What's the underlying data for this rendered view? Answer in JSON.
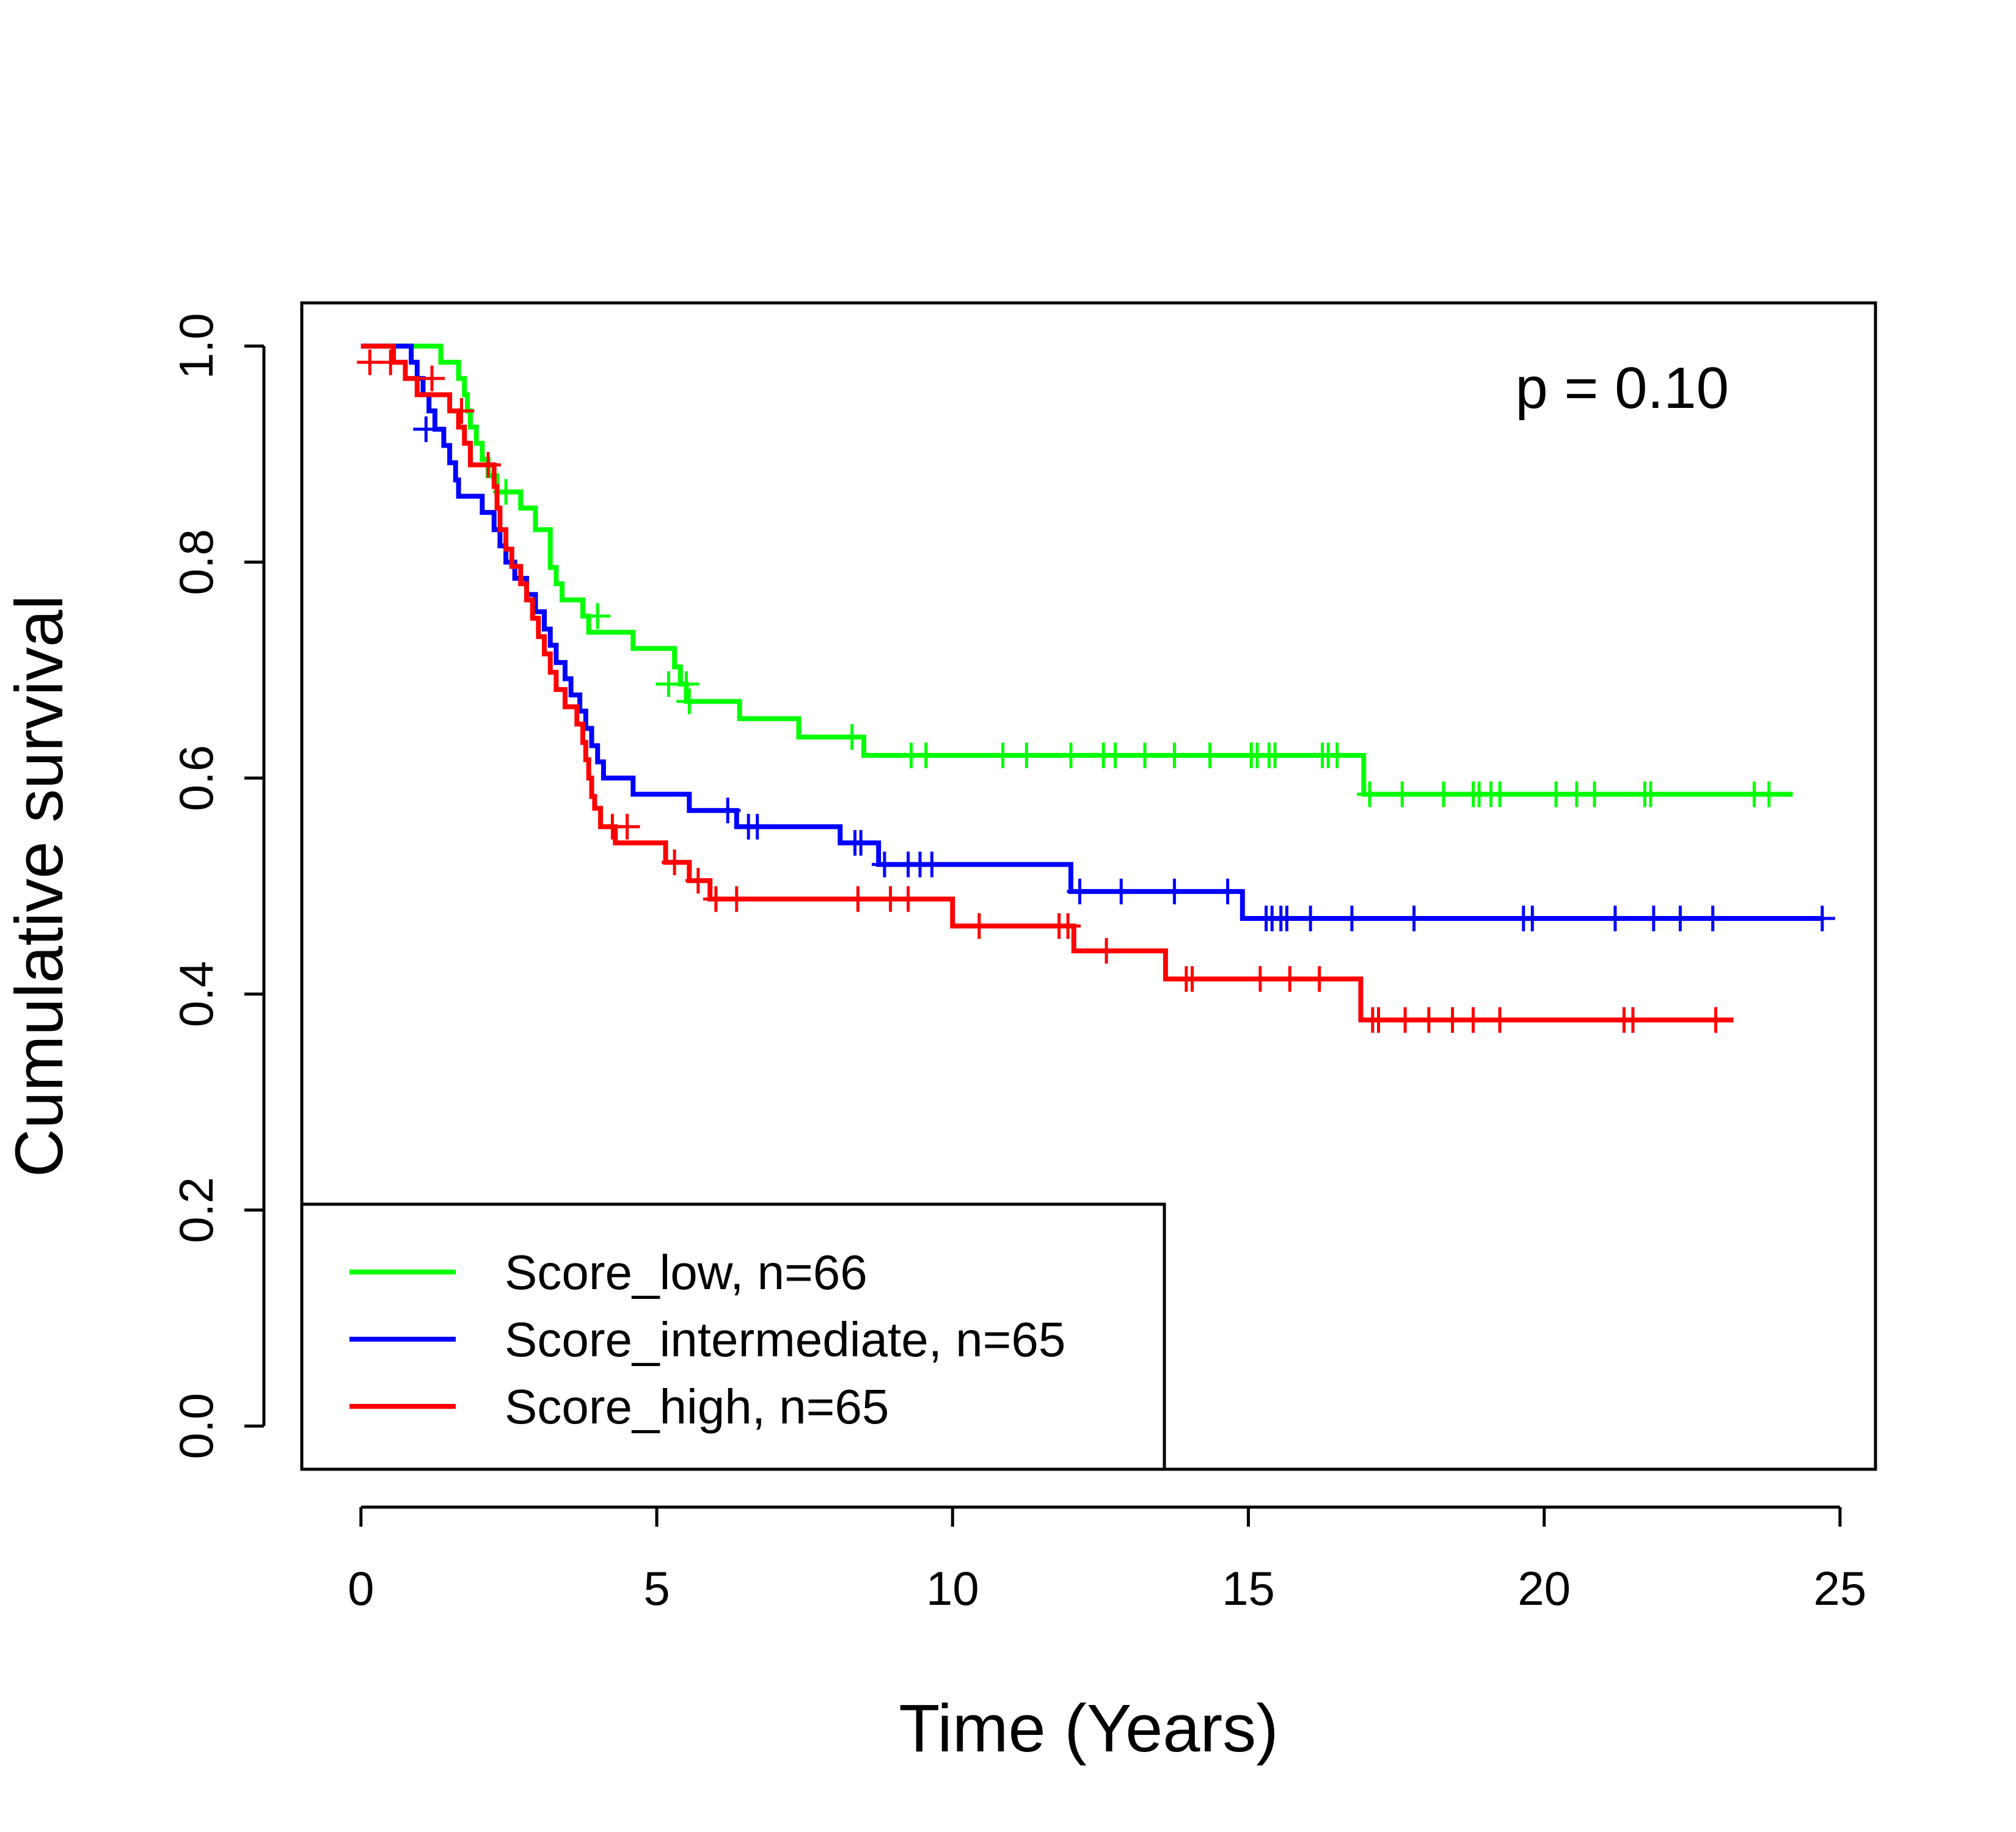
{
  "chart_data": {
    "type": "line",
    "subtype": "kaplan-meier",
    "title": "",
    "xlabel": "Time (Years)",
    "ylabel": "Cumulative survival",
    "xlim": [
      -1,
      25.6
    ],
    "ylim": [
      -0.04,
      1.04
    ],
    "xticks": [
      0,
      5,
      10,
      15,
      20,
      25
    ],
    "xtick_labels": [
      "0",
      "5",
      "10",
      "15",
      "20",
      "25"
    ],
    "yticks": [
      0,
      0.2,
      0.4,
      0.6,
      0.8,
      1.0
    ],
    "ytick_labels": [
      "0.0",
      "0.2",
      "0.4",
      "0.6",
      "0.8",
      "1.0"
    ],
    "grid": false,
    "legend_position": "bottom-left",
    "annotation": "p = 0.10",
    "series": [
      {
        "name": "Score_low, n=66",
        "color": "#00ff00",
        "steps": [
          [
            0,
            1.0
          ],
          [
            1.35,
            0.985
          ],
          [
            1.65,
            0.97
          ],
          [
            1.75,
            0.955
          ],
          [
            1.8,
            0.94
          ],
          [
            1.85,
            0.925
          ],
          [
            1.95,
            0.91
          ],
          [
            2.05,
            0.895
          ],
          [
            2.15,
            0.88
          ],
          [
            2.3,
            0.865
          ],
          [
            2.7,
            0.85
          ],
          [
            2.95,
            0.83
          ],
          [
            3.2,
            0.795
          ],
          [
            3.3,
            0.78
          ],
          [
            3.4,
            0.765
          ],
          [
            3.75,
            0.75
          ],
          [
            3.85,
            0.735
          ],
          [
            4.6,
            0.72
          ],
          [
            5.3,
            0.703
          ],
          [
            5.4,
            0.687
          ],
          [
            5.5,
            0.671
          ],
          [
            6.4,
            0.655
          ],
          [
            7.4,
            0.638
          ],
          [
            8.5,
            0.621
          ],
          [
            16.95,
            0.585
          ],
          [
            24.2,
            0.585
          ]
        ],
        "censored": [
          [
            2.45,
            0.865
          ],
          [
            4.0,
            0.75
          ],
          [
            5.2,
            0.687
          ],
          [
            5.5,
            0.687
          ],
          [
            5.55,
            0.671
          ],
          [
            8.3,
            0.638
          ],
          [
            9.3,
            0.621
          ],
          [
            9.55,
            0.621
          ],
          [
            10.85,
            0.621
          ],
          [
            11.25,
            0.621
          ],
          [
            12.0,
            0.621
          ],
          [
            12.55,
            0.621
          ],
          [
            12.75,
            0.621
          ],
          [
            13.25,
            0.621
          ],
          [
            13.75,
            0.621
          ],
          [
            14.35,
            0.621
          ],
          [
            15.05,
            0.621
          ],
          [
            15.15,
            0.621
          ],
          [
            15.35,
            0.621
          ],
          [
            15.45,
            0.621
          ],
          [
            16.25,
            0.621
          ],
          [
            16.35,
            0.621
          ],
          [
            16.5,
            0.621
          ],
          [
            17.05,
            0.585
          ],
          [
            17.6,
            0.585
          ],
          [
            18.3,
            0.585
          ],
          [
            18.8,
            0.585
          ],
          [
            18.9,
            0.585
          ],
          [
            19.1,
            0.585
          ],
          [
            19.25,
            0.585
          ],
          [
            20.2,
            0.585
          ],
          [
            20.55,
            0.585
          ],
          [
            20.85,
            0.585
          ],
          [
            21.7,
            0.585
          ],
          [
            21.8,
            0.585
          ],
          [
            23.55,
            0.585
          ],
          [
            23.8,
            0.585
          ]
        ]
      },
      {
        "name": "Score_intermediate, n=65",
        "color": "#0000ff",
        "steps": [
          [
            0,
            1.0
          ],
          [
            0.85,
            0.985
          ],
          [
            0.95,
            0.97
          ],
          [
            1.05,
            0.955
          ],
          [
            1.15,
            0.94
          ],
          [
            1.25,
            0.923
          ],
          [
            1.4,
            0.908
          ],
          [
            1.5,
            0.892
          ],
          [
            1.6,
            0.876
          ],
          [
            1.65,
            0.861
          ],
          [
            2.05,
            0.846
          ],
          [
            2.25,
            0.83
          ],
          [
            2.35,
            0.815
          ],
          [
            2.45,
            0.8
          ],
          [
            2.6,
            0.785
          ],
          [
            2.8,
            0.77
          ],
          [
            2.95,
            0.754
          ],
          [
            3.1,
            0.738
          ],
          [
            3.2,
            0.723
          ],
          [
            3.3,
            0.707
          ],
          [
            3.45,
            0.692
          ],
          [
            3.55,
            0.677
          ],
          [
            3.7,
            0.662
          ],
          [
            3.8,
            0.646
          ],
          [
            3.9,
            0.63
          ],
          [
            4.0,
            0.615
          ],
          [
            4.1,
            0.6
          ],
          [
            4.6,
            0.585
          ],
          [
            5.55,
            0.57
          ],
          [
            6.35,
            0.555
          ],
          [
            8.1,
            0.54
          ],
          [
            8.75,
            0.52
          ],
          [
            12.0,
            0.495
          ],
          [
            14.9,
            0.47
          ],
          [
            24.7,
            0.47
          ]
        ],
        "censored": [
          [
            1.1,
            0.923
          ],
          [
            6.2,
            0.57
          ],
          [
            6.55,
            0.555
          ],
          [
            6.7,
            0.555
          ],
          [
            8.35,
            0.54
          ],
          [
            8.45,
            0.54
          ],
          [
            8.85,
            0.52
          ],
          [
            9.25,
            0.52
          ],
          [
            9.45,
            0.52
          ],
          [
            9.65,
            0.52
          ],
          [
            12.15,
            0.495
          ],
          [
            12.85,
            0.495
          ],
          [
            13.75,
            0.495
          ],
          [
            14.65,
            0.495
          ],
          [
            15.3,
            0.47
          ],
          [
            15.4,
            0.47
          ],
          [
            15.55,
            0.47
          ],
          [
            15.65,
            0.47
          ],
          [
            16.05,
            0.47
          ],
          [
            16.75,
            0.47
          ],
          [
            17.8,
            0.47
          ],
          [
            19.65,
            0.47
          ],
          [
            19.8,
            0.47
          ],
          [
            21.2,
            0.47
          ],
          [
            21.85,
            0.47
          ],
          [
            22.3,
            0.47
          ],
          [
            22.85,
            0.47
          ],
          [
            24.7,
            0.47
          ]
        ]
      },
      {
        "name": "Score_high, n=65",
        "color": "#ff0000",
        "steps": [
          [
            0,
            1.0
          ],
          [
            0.55,
            0.985
          ],
          [
            0.75,
            0.97
          ],
          [
            0.95,
            0.955
          ],
          [
            1.5,
            0.94
          ],
          [
            1.65,
            0.925
          ],
          [
            1.75,
            0.91
          ],
          [
            1.85,
            0.89
          ],
          [
            2.25,
            0.87
          ],
          [
            2.3,
            0.85
          ],
          [
            2.35,
            0.83
          ],
          [
            2.45,
            0.812
          ],
          [
            2.55,
            0.796
          ],
          [
            2.7,
            0.78
          ],
          [
            2.8,
            0.765
          ],
          [
            2.9,
            0.748
          ],
          [
            3.0,
            0.731
          ],
          [
            3.1,
            0.715
          ],
          [
            3.2,
            0.698
          ],
          [
            3.3,
            0.682
          ],
          [
            3.45,
            0.666
          ],
          [
            3.65,
            0.65
          ],
          [
            3.75,
            0.633
          ],
          [
            3.8,
            0.617
          ],
          [
            3.85,
            0.6
          ],
          [
            3.9,
            0.583
          ],
          [
            3.95,
            0.572
          ],
          [
            4.05,
            0.555
          ],
          [
            4.3,
            0.54
          ],
          [
            5.15,
            0.522
          ],
          [
            5.55,
            0.505
          ],
          [
            5.9,
            0.488
          ],
          [
            10.0,
            0.463
          ],
          [
            12.05,
            0.44
          ],
          [
            13.6,
            0.414
          ],
          [
            16.9,
            0.376
          ],
          [
            23.2,
            0.376
          ]
        ],
        "censored": [
          [
            0.15,
            0.985
          ],
          [
            0.5,
            0.985
          ],
          [
            1.2,
            0.97
          ],
          [
            1.7,
            0.94
          ],
          [
            2.15,
            0.89
          ],
          [
            4.25,
            0.555
          ],
          [
            4.5,
            0.555
          ],
          [
            5.3,
            0.522
          ],
          [
            5.7,
            0.505
          ],
          [
            6.0,
            0.488
          ],
          [
            6.35,
            0.488
          ],
          [
            8.4,
            0.488
          ],
          [
            8.95,
            0.488
          ],
          [
            9.25,
            0.488
          ],
          [
            10.45,
            0.463
          ],
          [
            11.8,
            0.463
          ],
          [
            11.95,
            0.463
          ],
          [
            12.6,
            0.44
          ],
          [
            13.95,
            0.414
          ],
          [
            14.05,
            0.414
          ],
          [
            15.2,
            0.414
          ],
          [
            15.7,
            0.414
          ],
          [
            16.2,
            0.414
          ],
          [
            17.1,
            0.376
          ],
          [
            17.2,
            0.376
          ],
          [
            17.65,
            0.376
          ],
          [
            18.05,
            0.376
          ],
          [
            18.45,
            0.376
          ],
          [
            18.8,
            0.376
          ],
          [
            19.25,
            0.376
          ],
          [
            21.35,
            0.376
          ],
          [
            21.5,
            0.376
          ],
          [
            22.9,
            0.376
          ]
        ]
      }
    ]
  }
}
